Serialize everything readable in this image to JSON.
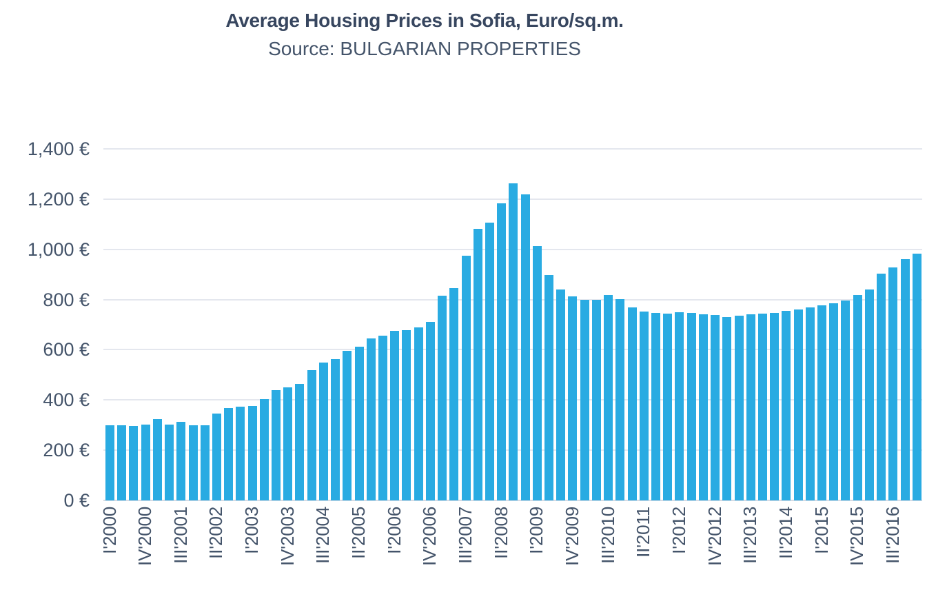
{
  "chart_data": {
    "type": "bar",
    "title": "Average Housing Prices in Sofia, Euro/sq.m.",
    "subtitle": "Source: BULGARIAN PROPERTIES",
    "xlabel": "",
    "ylabel": "",
    "ylim": [
      0,
      1400
    ],
    "y_tick_values": [
      0,
      200,
      400,
      600,
      800,
      1000,
      1200,
      1400
    ],
    "y_tick_labels": [
      "0 €",
      "200 €",
      "400 €",
      "600 €",
      "800 €",
      "1,000 €",
      "1,200 €",
      "1,400 €"
    ],
    "x_label_every": 3,
    "x_tick_labels": [
      "I'2000",
      "IV'2000",
      "III'2001",
      "II'2002",
      "I'2003",
      "IV'2003",
      "III'2004",
      "II'2005",
      "I'2006",
      "IV'2006",
      "III'2007",
      "II'2008",
      "I'2009",
      "IV'2009",
      "III'2010",
      "II'2011",
      "I'2012",
      "IV'2012",
      "III'2013",
      "II'2014",
      "I'2015",
      "IV'2015",
      "III'2016"
    ],
    "grid": true,
    "legend_position": "none",
    "bar_color": "#29abe2",
    "text_color": "#44546a",
    "grid_color": "#e4e7ee",
    "axis_line_color": "#d7dbe4",
    "categories": [
      "I'2000",
      "II'2000",
      "III'2000",
      "IV'2000",
      "I'2001",
      "II'2001",
      "III'2001",
      "IV'2001",
      "I'2002",
      "II'2002",
      "III'2002",
      "IV'2002",
      "I'2003",
      "II'2003",
      "III'2003",
      "IV'2003",
      "I'2004",
      "II'2004",
      "III'2004",
      "IV'2004",
      "I'2005",
      "II'2005",
      "III'2005",
      "IV'2005",
      "I'2006",
      "II'2006",
      "III'2006",
      "IV'2006",
      "I'2007",
      "II'2007",
      "III'2007",
      "IV'2007",
      "I'2008",
      "II'2008",
      "III'2008",
      "IV'2008",
      "I'2009",
      "II'2009",
      "III'2009",
      "IV'2009",
      "I'2010",
      "II'2010",
      "III'2010",
      "IV'2010",
      "I'2011",
      "II'2011",
      "III'2011",
      "IV'2011",
      "I'2012",
      "II'2012",
      "III'2012",
      "IV'2012",
      "I'2013",
      "II'2013",
      "III'2013",
      "IV'2013",
      "I'2014",
      "II'2014",
      "III'2014",
      "IV'2014",
      "I'2015",
      "II'2015",
      "III'2015",
      "IV'2015",
      "I'2016",
      "II'2016",
      "III'2016",
      "IV'2016",
      "I'2017"
    ],
    "values": [
      298,
      298,
      296,
      301,
      325,
      302,
      313,
      299,
      300,
      345,
      367,
      373,
      377,
      404,
      438,
      450,
      465,
      519,
      548,
      562,
      597,
      611,
      645,
      657,
      676,
      679,
      690,
      712,
      816,
      846,
      975,
      1081,
      1106,
      1184,
      1264,
      1218,
      1013,
      897,
      840,
      812,
      798,
      800,
      817,
      802,
      769,
      752,
      748,
      745,
      750,
      746,
      741,
      739,
      731,
      736,
      741,
      745,
      748,
      755,
      761,
      769,
      777,
      785,
      796,
      817,
      839,
      902,
      929,
      961,
      984
    ]
  }
}
